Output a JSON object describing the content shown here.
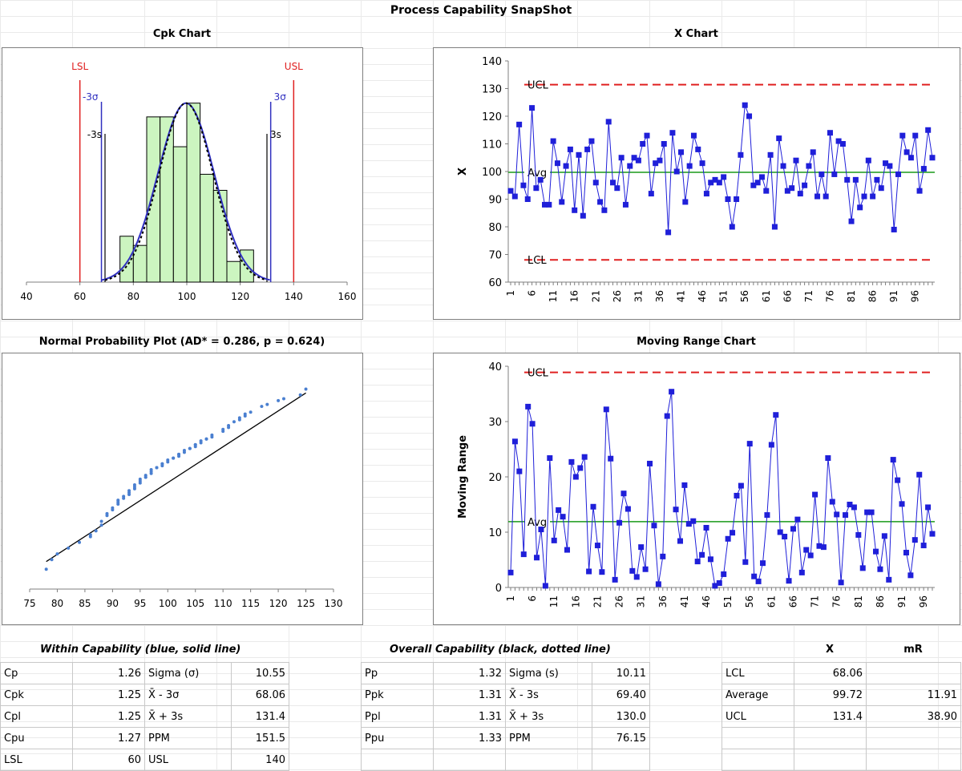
{
  "title": "Process Capability SnapShot",
  "panels": {
    "cpk": "Cpk Chart",
    "xchart": "X Chart",
    "npp": "Normal Probability Plot (AD* = 0.286, p = 0.624)",
    "mr": "Moving Range Chart"
  },
  "colors": {
    "spec_lines": "#e02020",
    "sigma_lines": "#3030c0",
    "series": "#1f1fd9",
    "avg_line": "#1a9a1a",
    "control_limits": "#e02020",
    "histogram": "#ccf5c0",
    "npp_points": "#4a7fd0"
  },
  "chart_data": [
    {
      "id": "cpk",
      "type": "bar",
      "title": "Cpk Chart",
      "xlim": [
        40,
        160
      ],
      "xticks": [
        "40",
        "60",
        "80",
        "100",
        "120",
        "140",
        "160"
      ],
      "bins": [
        {
          "from": 75,
          "to": 80,
          "height": 0.2
        },
        {
          "from": 80,
          "to": 85,
          "height": 0.16
        },
        {
          "from": 85,
          "to": 90,
          "height": 0.72
        },
        {
          "from": 90,
          "to": 95,
          "height": 0.72
        },
        {
          "from": 95,
          "to": 100,
          "height": 0.59
        },
        {
          "from": 100,
          "to": 105,
          "height": 0.78
        },
        {
          "from": 105,
          "to": 110,
          "height": 0.47
        },
        {
          "from": 110,
          "to": 115,
          "height": 0.4
        },
        {
          "from": 115,
          "to": 120,
          "height": 0.09
        },
        {
          "from": 120,
          "to": 125,
          "height": 0.14
        }
      ],
      "lines": [
        {
          "label": "LSL",
          "x": 60
        },
        {
          "label": "USL",
          "x": 140
        },
        {
          "label": "-3σ",
          "x": 68.06
        },
        {
          "label": "3σ",
          "x": 131.4
        },
        {
          "label": "-3s",
          "x": 69.4
        },
        {
          "label": "3s",
          "x": 130.0
        }
      ],
      "curve_mean": 99.72,
      "curve_sd": 10.55,
      "curve_peak": 0.78
    },
    {
      "id": "x",
      "type": "line",
      "title": "X Chart",
      "ylabel": "X",
      "ylim": [
        60,
        140
      ],
      "yticks": [
        "60",
        "70",
        "80",
        "90",
        "100",
        "110",
        "120",
        "130",
        "140"
      ],
      "xticks": [
        "1",
        "6",
        "11",
        "16",
        "21",
        "26",
        "31",
        "36",
        "41",
        "46",
        "51",
        "56",
        "61",
        "66",
        "71",
        "76",
        "81",
        "86",
        "91",
        "96"
      ],
      "ucl": 131.4,
      "avg": 99.72,
      "lcl": 68.06,
      "ucl_label": "UCL",
      "avg_label": "Avg",
      "lcl_label": "LCL",
      "values": [
        93,
        91,
        117,
        95,
        90,
        123,
        94,
        97,
        88,
        88,
        111,
        103,
        89,
        102,
        108,
        86,
        106,
        84,
        108,
        111,
        96,
        89,
        86,
        118,
        96,
        94,
        105,
        88,
        102,
        105,
        104,
        110,
        113,
        92,
        103,
        104,
        110,
        78,
        114,
        100,
        107,
        89,
        102,
        113,
        108,
        103,
        92,
        96,
        97,
        96,
        98,
        90,
        80,
        90,
        106,
        124,
        120,
        95,
        96,
        98,
        93,
        106,
        80,
        112,
        102,
        93,
        94,
        104,
        92,
        95,
        102,
        107,
        91,
        99,
        91,
        114,
        99,
        111,
        110,
        97,
        82,
        97,
        87,
        91,
        104,
        91,
        97,
        94,
        103,
        102,
        79,
        99,
        113,
        107,
        105,
        113,
        93,
        101,
        115,
        105
      ]
    },
    {
      "id": "npp",
      "type": "scatter",
      "title": "Normal Probability Plot (AD* = 0.286, p = 0.624)",
      "xlim": [
        75,
        130
      ],
      "xticks": [
        "75",
        "80",
        "85",
        "90",
        "95",
        "100",
        "105",
        "110",
        "115",
        "120",
        "125",
        "130"
      ],
      "fit_line": [
        [
          78,
          0.06
        ],
        [
          125,
          0.94
        ]
      ],
      "points_x": [
        78,
        79,
        80,
        82,
        84,
        86,
        86,
        87,
        88,
        88,
        89,
        89,
        90,
        90,
        91,
        91,
        91,
        92,
        92,
        93,
        93,
        93,
        94,
        94,
        94,
        95,
        95,
        95,
        96,
        96,
        96,
        97,
        97,
        97,
        98,
        98,
        99,
        99,
        99,
        100,
        100,
        101,
        101,
        102,
        102,
        102,
        103,
        103,
        104,
        104,
        105,
        105,
        105,
        106,
        106,
        107,
        107,
        108,
        108,
        110,
        110,
        111,
        111,
        112,
        113,
        113,
        114,
        114,
        115,
        117,
        118,
        120,
        121,
        124,
        125
      ],
      "points_y": [
        0.02,
        0.07,
        0.1,
        0.13,
        0.16,
        0.19,
        0.2,
        0.22,
        0.25,
        0.27,
        0.3,
        0.31,
        0.33,
        0.34,
        0.36,
        0.37,
        0.38,
        0.39,
        0.4,
        0.41,
        0.42,
        0.43,
        0.44,
        0.45,
        0.46,
        0.47,
        0.48,
        0.49,
        0.5,
        0.5,
        0.51,
        0.52,
        0.53,
        0.54,
        0.55,
        0.55,
        0.56,
        0.57,
        0.57,
        0.58,
        0.59,
        0.6,
        0.6,
        0.61,
        0.62,
        0.62,
        0.63,
        0.64,
        0.65,
        0.65,
        0.66,
        0.67,
        0.67,
        0.68,
        0.69,
        0.7,
        0.7,
        0.71,
        0.72,
        0.74,
        0.75,
        0.76,
        0.77,
        0.79,
        0.8,
        0.81,
        0.82,
        0.83,
        0.84,
        0.87,
        0.88,
        0.9,
        0.91,
        0.93,
        0.96
      ]
    },
    {
      "id": "mr",
      "type": "line",
      "title": "Moving Range Chart",
      "ylabel": "Moving Range",
      "ylim": [
        0,
        40
      ],
      "yticks": [
        "0",
        "10",
        "20",
        "30",
        "40"
      ],
      "xticks": [
        "1",
        "6",
        "11",
        "16",
        "21",
        "26",
        "31",
        "36",
        "41",
        "46",
        "51",
        "56",
        "61",
        "66",
        "71",
        "76",
        "81",
        "86",
        "91",
        "96"
      ],
      "ucl": 38.9,
      "avg": 11.91,
      "ucl_label": "UCL",
      "avg_label": "Avg",
      "values": [
        2.7,
        26.4,
        21,
        6,
        32.7,
        29.6,
        5.4,
        10.5,
        0.3,
        23.4,
        8.5,
        14,
        12.8,
        6.8,
        22.7,
        20,
        21.6,
        23.6,
        2.9,
        14.6,
        7.6,
        2.8,
        32.2,
        23.3,
        1.4,
        11.7,
        17,
        14.2,
        3,
        1.9,
        7.3,
        3.3,
        22.4,
        11.2,
        0.6,
        5.6,
        31,
        35.4,
        14.1,
        8.4,
        18.5,
        11.5,
        12,
        4.7,
        5.9,
        10.8,
        5.1,
        0.3,
        0.8,
        2.4,
        8.8,
        9.9,
        16.6,
        18.4,
        4.6,
        26,
        2,
        1.1,
        4.4,
        13.1,
        25.8,
        31.2,
        10,
        9.2,
        1.2,
        10.6,
        12.3,
        2.7,
        6.8,
        5.8,
        16.8,
        7.5,
        7.3,
        23.4,
        15.5,
        13.2,
        0.9,
        13.1,
        15,
        14.5,
        9.5,
        3.5,
        13.6,
        13.6,
        6.5,
        3.3,
        9.3,
        1.4,
        23.1,
        19.4,
        15.1,
        6.3,
        2.2,
        8.6,
        20.4,
        7.6,
        14.5,
        9.7
      ]
    }
  ],
  "within": {
    "header": "Within Capability (blue, solid line)",
    "rows": [
      {
        "label": "Cp",
        "value": "1.26",
        "label2": "Sigma (σ)",
        "value2": "10.55"
      },
      {
        "label": "Cpk",
        "value": "1.25",
        "label2": "X̄ - 3σ",
        "value2": "68.06"
      },
      {
        "label": "Cpl",
        "value": "1.25",
        "label2": "X̄ + 3s",
        "value2": "131.4"
      },
      {
        "label": "Cpu",
        "value": "1.27",
        "label2": "PPM",
        "value2": "151.5"
      },
      {
        "label": "LSL",
        "value": "60",
        "label2": "USL",
        "value2": "140"
      }
    ]
  },
  "overall": {
    "header": "Overall Capability (black, dotted line)",
    "rows": [
      {
        "label": "Pp",
        "value": "1.32",
        "label2": "Sigma (s)",
        "value2": "10.11"
      },
      {
        "label": "Ppk",
        "value": "1.31",
        "label2": "X̄ - 3s",
        "value2": "69.40"
      },
      {
        "label": "Ppl",
        "value": "1.31",
        "label2": "X̄ + 3s",
        "value2": "130.0"
      },
      {
        "label": "Ppu",
        "value": "1.33",
        "label2": "PPM",
        "value2": "76.15"
      },
      {
        "label": "",
        "value": "",
        "label2": "",
        "value2": ""
      }
    ]
  },
  "limits": {
    "col_x": "X",
    "col_mr": "mR",
    "rows": [
      {
        "label": "LCL",
        "x": "68.06",
        "mr": ""
      },
      {
        "label": "Average",
        "x": "99.72",
        "mr": "11.91"
      },
      {
        "label": "UCL",
        "x": "131.4",
        "mr": "38.90"
      },
      {
        "label": "",
        "x": "",
        "mr": ""
      },
      {
        "label": "",
        "x": "",
        "mr": ""
      }
    ]
  }
}
